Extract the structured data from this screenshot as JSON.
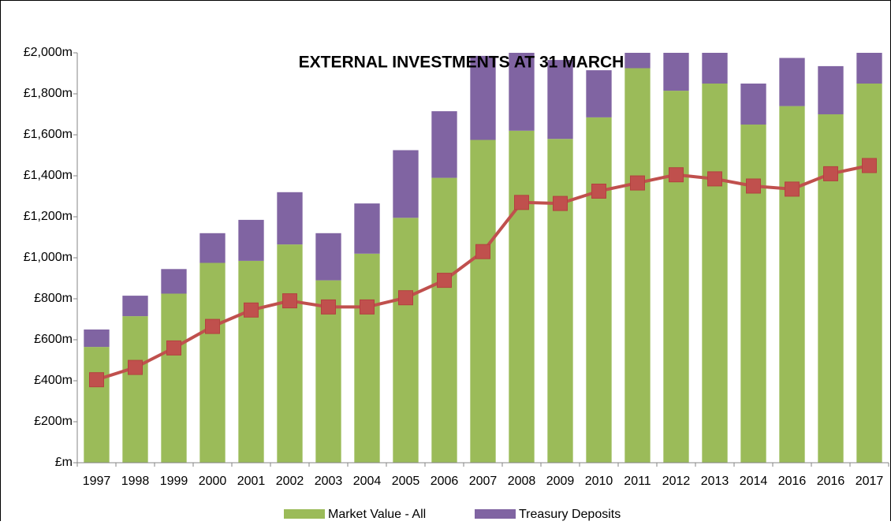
{
  "chart_data": {
    "type": "bar",
    "stacked": true,
    "title": "EXTERNAL INVESTMENTS AT 31 MARCH",
    "categories": [
      "1997",
      "1998",
      "1999",
      "2000",
      "2001",
      "2002",
      "2003",
      "2004",
      "2005",
      "2006",
      "2007",
      "2008",
      "2009",
      "2010",
      "2011",
      "2012",
      "2013",
      "2014",
      "2016",
      "2016",
      "2017"
    ],
    "series": [
      {
        "name": "Market Value - All",
        "color": "#9bbb59",
        "values": [
          565,
          715,
          825,
          975,
          985,
          1065,
          890,
          1020,
          1195,
          1390,
          1575,
          1620,
          1580,
          1685,
          1925,
          1815,
          1850,
          1650,
          1740,
          1700,
          1850
        ]
      },
      {
        "name": "Treasury Deposits",
        "color": "#8064a2",
        "values": [
          85,
          100,
          120,
          145,
          200,
          255,
          230,
          245,
          330,
          325,
          410,
          400,
          385,
          230,
          150,
          250,
          200,
          200,
          235,
          235,
          200
        ]
      },
      {
        "type": "line",
        "color": "#c0504d",
        "values": [
          405,
          465,
          560,
          665,
          745,
          790,
          760,
          760,
          805,
          890,
          1030,
          1270,
          1265,
          1325,
          1365,
          1405,
          1385,
          1350,
          1335,
          1410,
          1450
        ]
      }
    ],
    "ylim": [
      0,
      2000
    ],
    "yticks": [
      {
        "value": 0,
        "label": "£m"
      },
      {
        "value": 200,
        "label": "£200m"
      },
      {
        "value": 400,
        "label": "£400m"
      },
      {
        "value": 600,
        "label": "£600m"
      },
      {
        "value": 800,
        "label": "£800m"
      },
      {
        "value": 1000,
        "label": "£1,000m"
      },
      {
        "value": 1200,
        "label": "£1,200m"
      },
      {
        "value": 1400,
        "label": "£1,400m"
      },
      {
        "value": 1600,
        "label": "£1,600m"
      },
      {
        "value": 1800,
        "label": "£1,800m"
      },
      {
        "value": 2000,
        "label": "£2,000m"
      }
    ],
    "grid": false,
    "legend": "bottom"
  }
}
